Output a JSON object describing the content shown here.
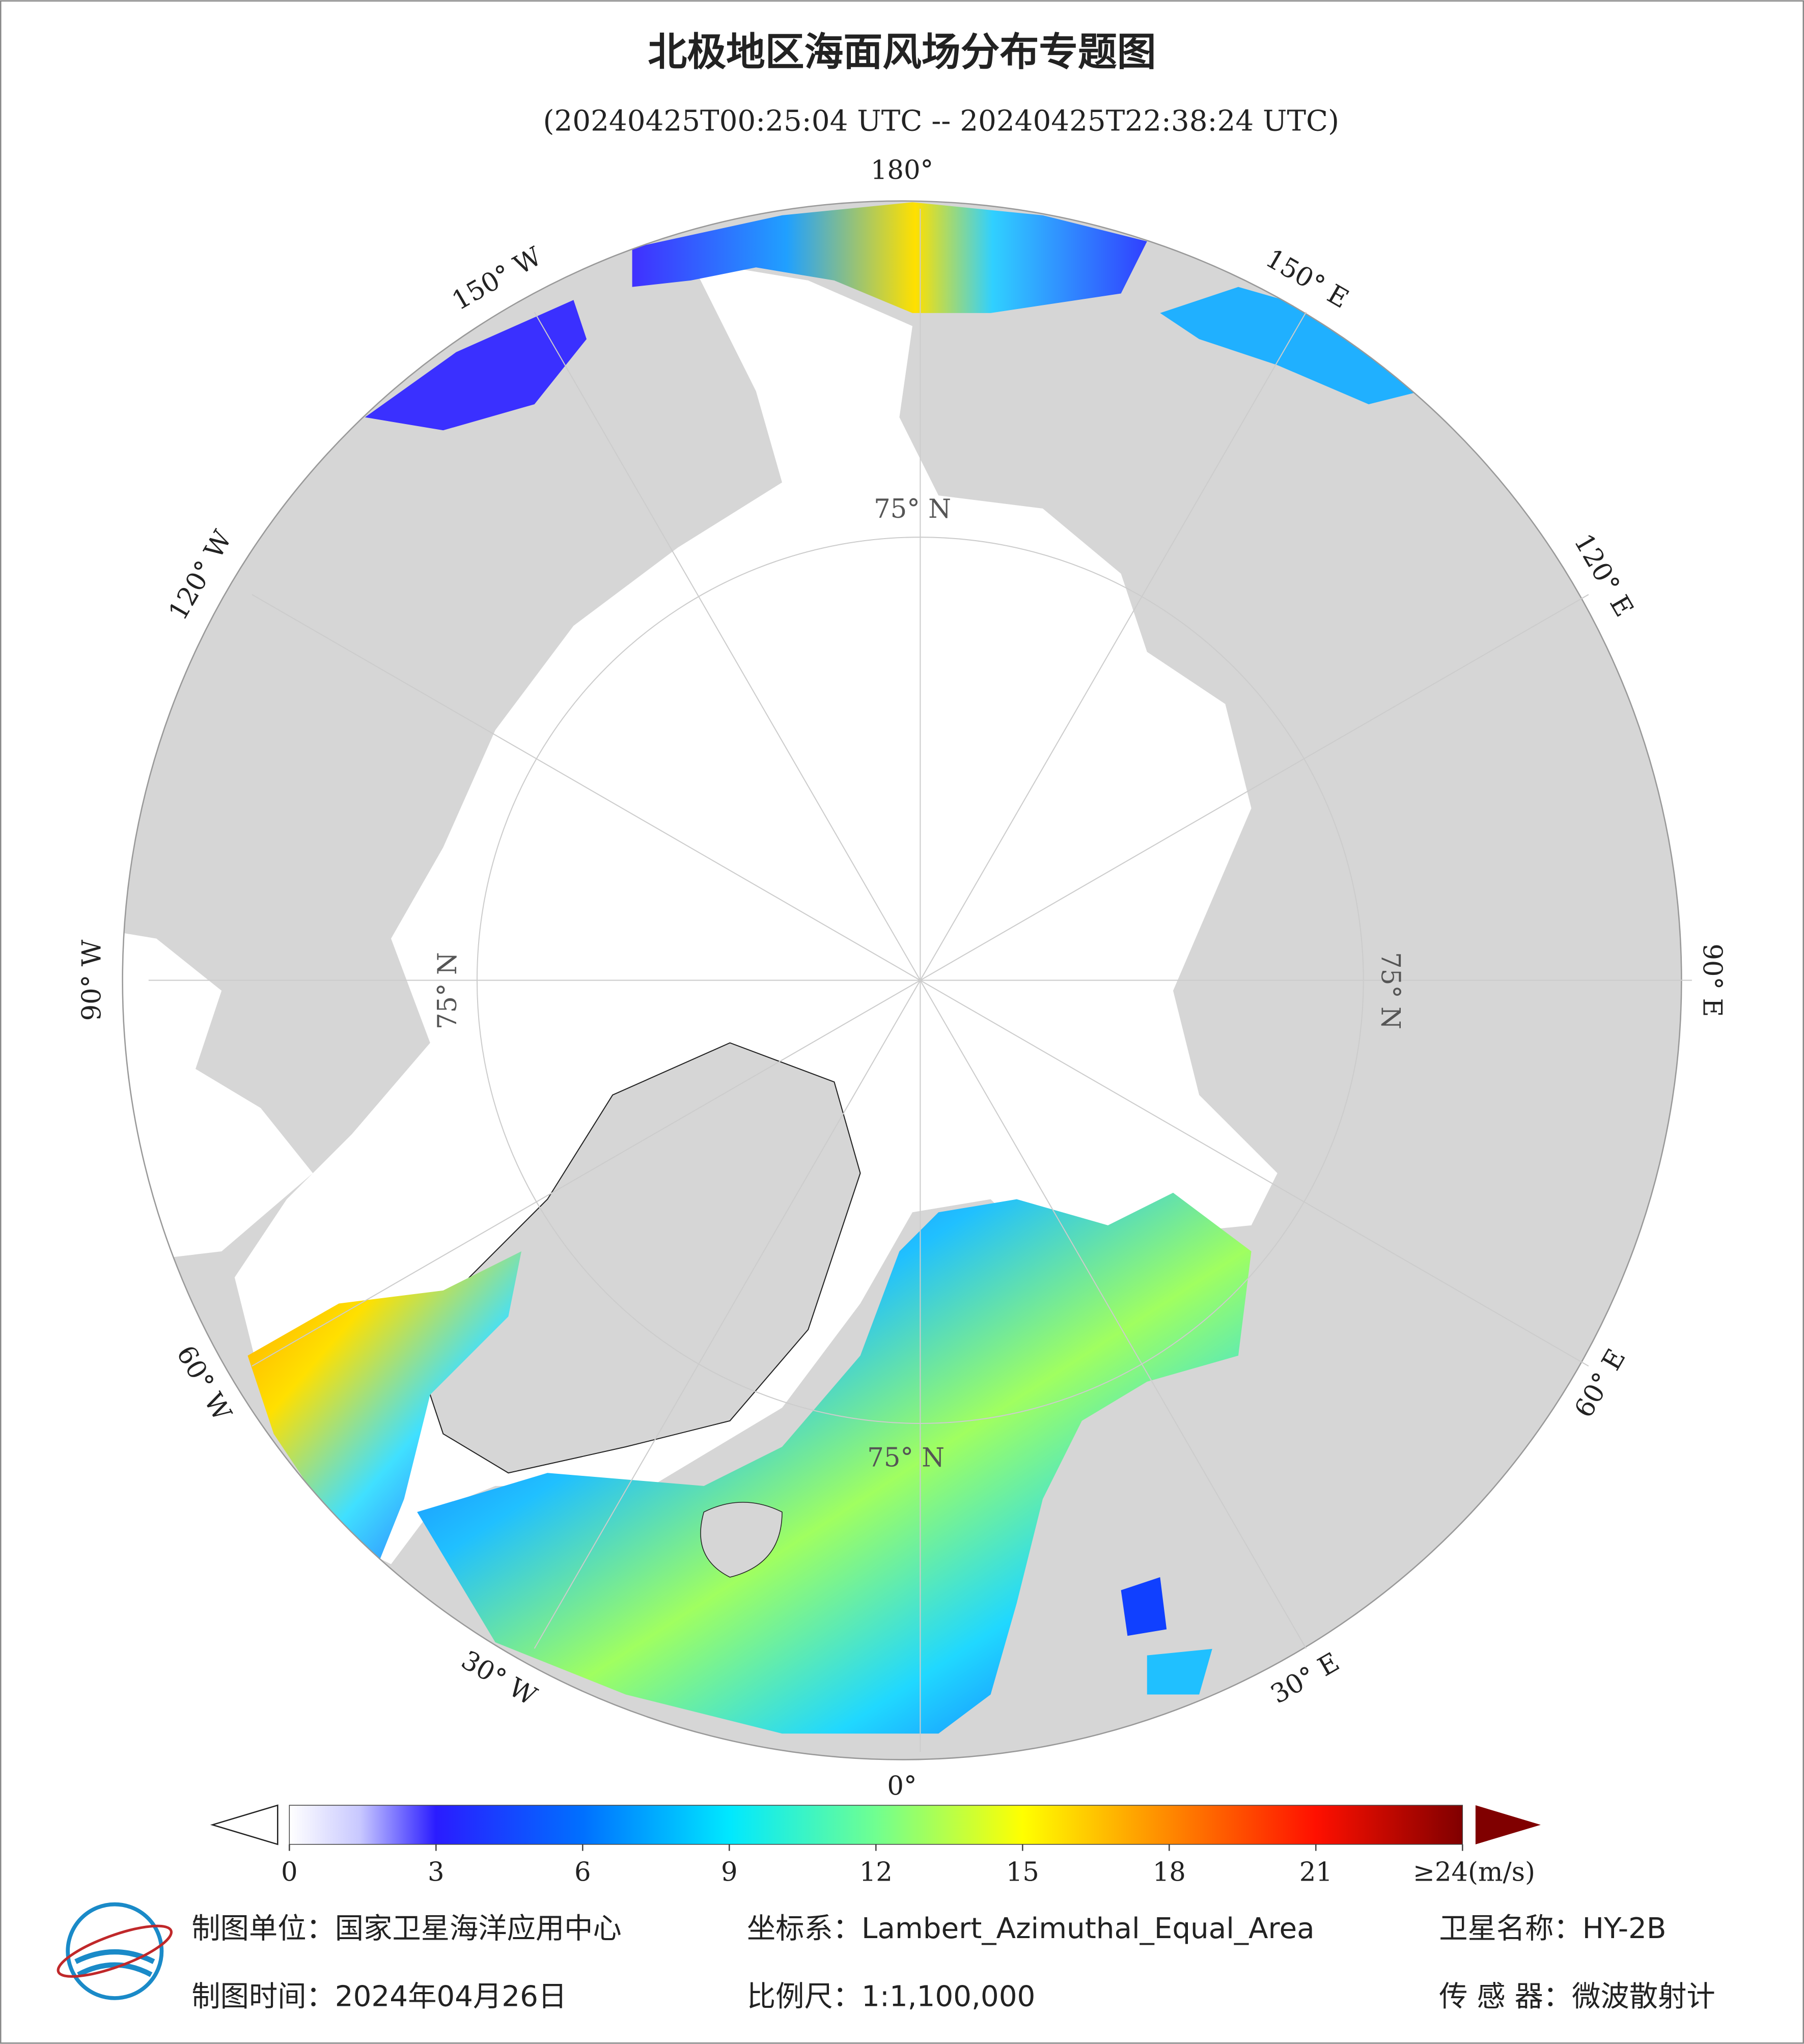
{
  "title": "北极地区海面风场分布专题图",
  "subtitle": "(20240425T00:25:04 UTC -- 20240425T22:38:24 UTC)",
  "longitude_labels": [
    "180°",
    "150° W",
    "120° W",
    "90° W",
    "60° W",
    "30° W",
    "0°",
    "30° E",
    "60° E",
    "90° E",
    "120° E",
    "150° E"
  ],
  "latitude_labels": [
    "75° N",
    "75° N",
    "75° N",
    "75° N"
  ],
  "colorbar": {
    "lim": [
      0,
      24
    ],
    "ticks": [
      0,
      3,
      6,
      9,
      12,
      15,
      18,
      21,
      {
        "value": 24,
        "label": "≥24(m/s)"
      }
    ]
  },
  "footer": {
    "unit": "制图单位：国家卫星海洋应用中心",
    "projection": "坐标系：Lambert_Azimuthal_Equal_Area",
    "satellite": "卫星名称：HY-2B",
    "date": "制图时间：2024年04月26日",
    "scale": "比例尺：1:1,100,000",
    "sensor": "传 感 器：微波散射计"
  }
}
